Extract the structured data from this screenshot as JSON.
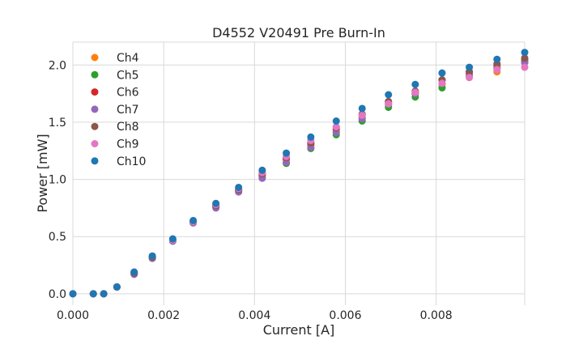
{
  "chart_data": {
    "type": "scatter",
    "title": "D4552 V20491 Pre Burn-In",
    "xlabel": "Current [A]",
    "ylabel": "Power [mW]",
    "xlim": [
      0.0,
      0.00995
    ],
    "ylim": [
      -0.1,
      2.2
    ],
    "xticks": [
      "0.000",
      "0.002",
      "0.004",
      "0.006",
      "0.008"
    ],
    "xtick_values": [
      0.0,
      0.002,
      0.004,
      0.006,
      0.008
    ],
    "yticks": [
      "0.0",
      "0.5",
      "1.0",
      "1.5",
      "2.0"
    ],
    "ytick_values": [
      0.0,
      0.5,
      1.0,
      1.5,
      2.0
    ],
    "grid": true,
    "legend_position": "top-left",
    "x": [
      0.0,
      0.00045,
      0.00068,
      0.00097,
      0.00135,
      0.00175,
      0.0022,
      0.00265,
      0.00315,
      0.00365,
      0.00417,
      0.0047,
      0.00524,
      0.0058,
      0.00637,
      0.00695,
      0.00754,
      0.00813,
      0.00873,
      0.00934,
      0.00995
    ],
    "series": [
      {
        "name": "Ch4",
        "color": "#ff7f0e",
        "values": [
          0.0,
          0.0,
          0.0,
          0.06,
          0.18,
          0.32,
          0.47,
          0.63,
          0.77,
          0.91,
          1.04,
          1.17,
          1.3,
          1.42,
          1.54,
          1.65,
          1.75,
          1.83,
          1.9,
          1.94,
          2.02
        ]
      },
      {
        "name": "Ch5",
        "color": "#2ca02c",
        "values": [
          0.0,
          0.0,
          0.0,
          0.06,
          0.18,
          0.31,
          0.46,
          0.62,
          0.76,
          0.9,
          1.02,
          1.14,
          1.27,
          1.39,
          1.51,
          1.63,
          1.72,
          1.8,
          1.91,
          1.98,
          2.03
        ]
      },
      {
        "name": "Ch6",
        "color": "#d62728",
        "values": [
          0.0,
          0.0,
          0.0,
          0.06,
          0.18,
          0.32,
          0.47,
          0.63,
          0.77,
          0.91,
          1.04,
          1.18,
          1.31,
          1.44,
          1.56,
          1.68,
          1.77,
          1.87,
          1.94,
          2.0,
          2.05
        ]
      },
      {
        "name": "Ch7",
        "color": "#9467bd",
        "values": [
          0.0,
          0.0,
          0.0,
          0.06,
          0.17,
          0.31,
          0.46,
          0.62,
          0.75,
          0.89,
          1.01,
          1.15,
          1.28,
          1.41,
          1.53,
          1.66,
          1.75,
          1.84,
          1.92,
          1.97,
          2.02
        ]
      },
      {
        "name": "Ch8",
        "color": "#8c564b",
        "values": [
          0.0,
          0.0,
          0.0,
          0.06,
          0.18,
          0.32,
          0.47,
          0.63,
          0.77,
          0.91,
          1.05,
          1.19,
          1.32,
          1.45,
          1.57,
          1.68,
          1.77,
          1.87,
          1.94,
          2.01,
          2.06
        ]
      },
      {
        "name": "Ch9",
        "color": "#e377c2",
        "values": [
          0.0,
          0.0,
          0.0,
          0.06,
          0.19,
          0.33,
          0.47,
          0.63,
          0.78,
          0.92,
          1.06,
          1.2,
          1.34,
          1.46,
          1.56,
          1.66,
          1.76,
          1.84,
          1.89,
          1.96,
          1.98
        ]
      },
      {
        "name": "Ch10",
        "color": "#1f77b4",
        "values": [
          0.0,
          0.0,
          0.0,
          0.06,
          0.19,
          0.33,
          0.48,
          0.64,
          0.79,
          0.93,
          1.08,
          1.23,
          1.37,
          1.51,
          1.62,
          1.74,
          1.83,
          1.93,
          1.98,
          2.05,
          2.11
        ]
      }
    ]
  }
}
